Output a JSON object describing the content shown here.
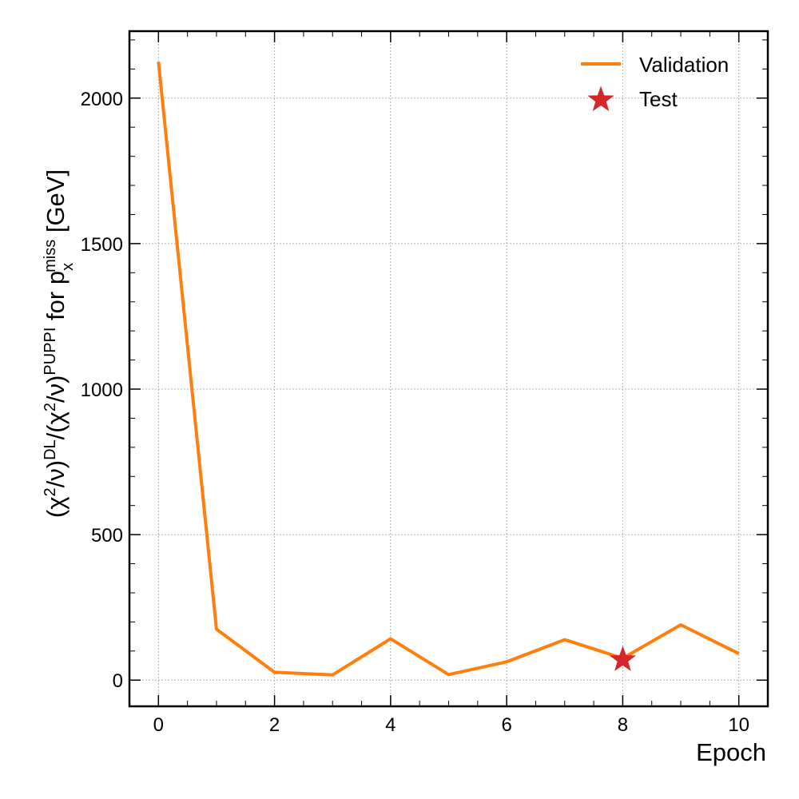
{
  "chart_data": {
    "type": "line",
    "xlabel": "Epoch",
    "ylabel": {
      "open": "(χ",
      "sq1": "2",
      "nu1": "/ν)",
      "dl": "DL",
      "mid": "/(χ",
      "sq2": "2",
      "nu2": "/ν)",
      "puppi": "PUPPI",
      "for": " for p",
      "sub": "x",
      "sup": "miss",
      "unit": " [GeV]"
    },
    "xlim": [
      -0.5,
      10.5
    ],
    "ylim": [
      -90,
      2230
    ],
    "xticks": [
      0,
      2,
      4,
      6,
      8,
      10
    ],
    "yticks": [
      0,
      500,
      1000,
      1500,
      2000
    ],
    "grid": true,
    "legend_position": "top-right",
    "series": [
      {
        "name": "Validation",
        "kind": "line",
        "color": "#ff7f0e",
        "x": [
          0,
          1,
          2,
          3,
          4,
          5,
          6,
          7,
          8,
          9,
          10
        ],
        "y": [
          2125,
          175,
          27,
          18,
          142,
          19,
          63,
          139,
          75,
          190,
          91
        ]
      },
      {
        "name": "Test",
        "kind": "marker",
        "marker": "star",
        "color": "#d62728",
        "x": [
          8
        ],
        "y": [
          70
        ]
      }
    ]
  }
}
